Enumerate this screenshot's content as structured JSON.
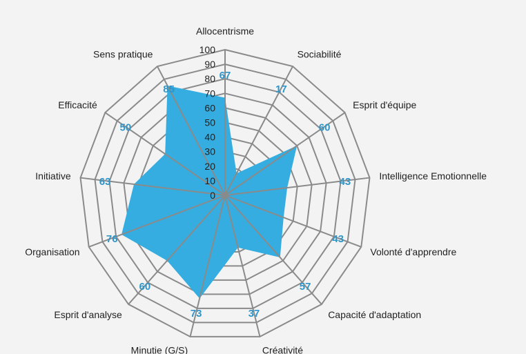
{
  "chart_data": {
    "type": "radar",
    "categories": [
      "Allocentrisme",
      "Sociabilité",
      "Esprit d'équipe",
      "Intelligence Emotionnelle",
      "Volonté d'apprendre",
      "Capacité d'adaptation",
      "Créativité",
      "Minutie (G/S)",
      "Esprit d'analyse",
      "Organisation",
      "Initiative",
      "Efficacité",
      "Sens pratique"
    ],
    "values": [
      67,
      17,
      60,
      43,
      43,
      57,
      37,
      73,
      60,
      76,
      63,
      50,
      85
    ],
    "range": [
      0,
      100
    ],
    "ticks": [
      0,
      10,
      20,
      30,
      40,
      50,
      60,
      70,
      80,
      90,
      100
    ],
    "grid": true,
    "legend": "none",
    "colors": {
      "fill": "#35ade0",
      "grid": "#8a8a8a",
      "data_label": "#2f95c8",
      "background": "#f3f3f3"
    }
  }
}
